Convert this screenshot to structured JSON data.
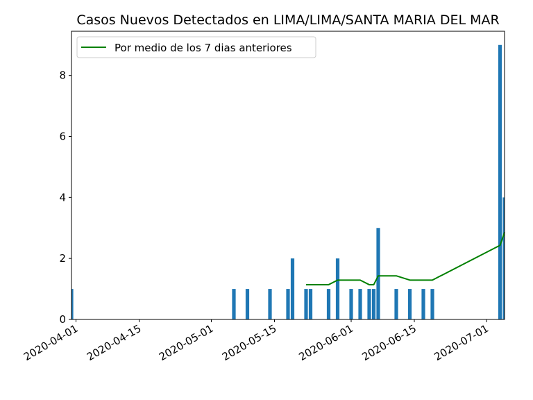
{
  "chart_data": {
    "type": "bar",
    "title": "Casos Nuevos Detectados en LIMA/LIMA/SANTA MARIA DEL MAR",
    "xlabel": "",
    "ylabel": "",
    "x_range": [
      "2020-03-31",
      "2020-07-05"
    ],
    "ylim": [
      0,
      9.45
    ],
    "yticks": [
      0,
      2,
      4,
      6,
      8
    ],
    "xticks": [
      "2020-04-01",
      "2020-04-15",
      "2020-05-01",
      "2020-05-15",
      "2020-06-01",
      "2020-06-15",
      "2020-07-01"
    ],
    "grid": false,
    "legend_position": "top-left",
    "bars": {
      "color": "#1f77b4",
      "points": [
        {
          "x": "2020-03-31",
          "y": 1
        },
        {
          "x": "2020-05-06",
          "y": 1
        },
        {
          "x": "2020-05-09",
          "y": 1
        },
        {
          "x": "2020-05-14",
          "y": 1
        },
        {
          "x": "2020-05-18",
          "y": 1
        },
        {
          "x": "2020-05-19",
          "y": 2
        },
        {
          "x": "2020-05-22",
          "y": 1
        },
        {
          "x": "2020-05-23",
          "y": 1
        },
        {
          "x": "2020-05-27",
          "y": 1
        },
        {
          "x": "2020-05-29",
          "y": 2
        },
        {
          "x": "2020-06-01",
          "y": 1
        },
        {
          "x": "2020-06-03",
          "y": 1
        },
        {
          "x": "2020-06-05",
          "y": 1
        },
        {
          "x": "2020-06-06",
          "y": 1
        },
        {
          "x": "2020-06-07",
          "y": 3
        },
        {
          "x": "2020-06-11",
          "y": 1
        },
        {
          "x": "2020-06-14",
          "y": 1
        },
        {
          "x": "2020-06-17",
          "y": 1
        },
        {
          "x": "2020-06-19",
          "y": 1
        },
        {
          "x": "2020-07-04",
          "y": 9
        },
        {
          "x": "2020-07-05",
          "y": 4
        }
      ]
    },
    "series": [
      {
        "name": "Por medio de los 7 dias anteriores",
        "color": "#008000",
        "type": "line",
        "points": [
          {
            "x": "2020-05-22",
            "y": 1.14
          },
          {
            "x": "2020-05-27",
            "y": 1.14
          },
          {
            "x": "2020-05-29",
            "y": 1.29
          },
          {
            "x": "2020-06-03",
            "y": 1.29
          },
          {
            "x": "2020-06-05",
            "y": 1.14
          },
          {
            "x": "2020-06-06",
            "y": 1.14
          },
          {
            "x": "2020-06-07",
            "y": 1.43
          },
          {
            "x": "2020-06-11",
            "y": 1.43
          },
          {
            "x": "2020-06-14",
            "y": 1.29
          },
          {
            "x": "2020-06-19",
            "y": 1.29
          },
          {
            "x": "2020-07-04",
            "y": 2.43
          },
          {
            "x": "2020-07-05",
            "y": 2.86
          }
        ]
      }
    ]
  }
}
